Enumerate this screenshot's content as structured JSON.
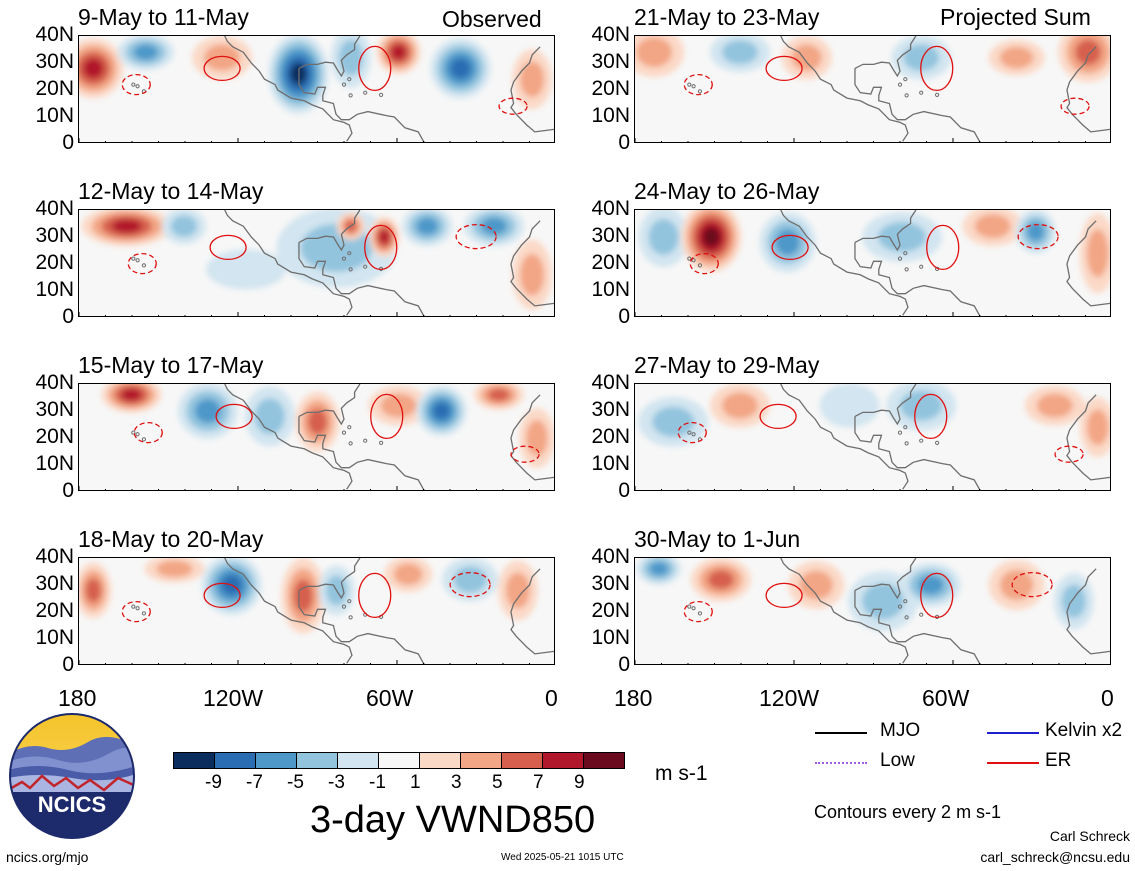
{
  "column_headings": {
    "observed": "Observed",
    "projected": "Projected Sum"
  },
  "panels": [
    {
      "id": "obs-1",
      "title": "9-May to 11-May"
    },
    {
      "id": "obs-2",
      "title": "12-May to 14-May"
    },
    {
      "id": "obs-3",
      "title": "15-May to 17-May"
    },
    {
      "id": "obs-4",
      "title": "18-May to 20-May"
    },
    {
      "id": "proj-1",
      "title": "21-May to 23-May"
    },
    {
      "id": "proj-2",
      "title": "24-May to 26-May"
    },
    {
      "id": "proj-3",
      "title": "27-May to 29-May"
    },
    {
      "id": "proj-4",
      "title": "30-May to 1-Jun"
    }
  ],
  "lat_labels": [
    "40N",
    "30N",
    "20N",
    "10N",
    "0"
  ],
  "lon_labels": [
    "180",
    "120W",
    "60W",
    "0"
  ],
  "colorbar": {
    "unit": "m s-1",
    "tick_labels": [
      "-9",
      "-7",
      "-5",
      "-3",
      "-1",
      "1",
      "3",
      "5",
      "7",
      "9"
    ],
    "colors": [
      "#0a2d5e",
      "#2a6db2",
      "#4d98c9",
      "#93c4de",
      "#d2e5f0",
      "#f7f7f7",
      "#fbd9c7",
      "#f2a685",
      "#d6604d",
      "#b2182b",
      "#6b0a1e"
    ]
  },
  "title": "3-day VWND850",
  "legend": {
    "items": [
      {
        "label": "MJO",
        "color": "#000000"
      },
      {
        "label": "Kelvin x2",
        "color": "#1f1fcf"
      },
      {
        "label": "Low",
        "color": "#a45ce0"
      },
      {
        "label": "ER",
        "color": "#e01010"
      }
    ],
    "note": "Contours every 2 m s-1"
  },
  "logo": {
    "text": "NCICS"
  },
  "footer": {
    "url": "ncics.org/mjo",
    "timestamp": "Wed 2025-05-21 1015 UTC",
    "author": "Carl Schreck",
    "email": "carl_schreck@ncsu.edu"
  }
}
